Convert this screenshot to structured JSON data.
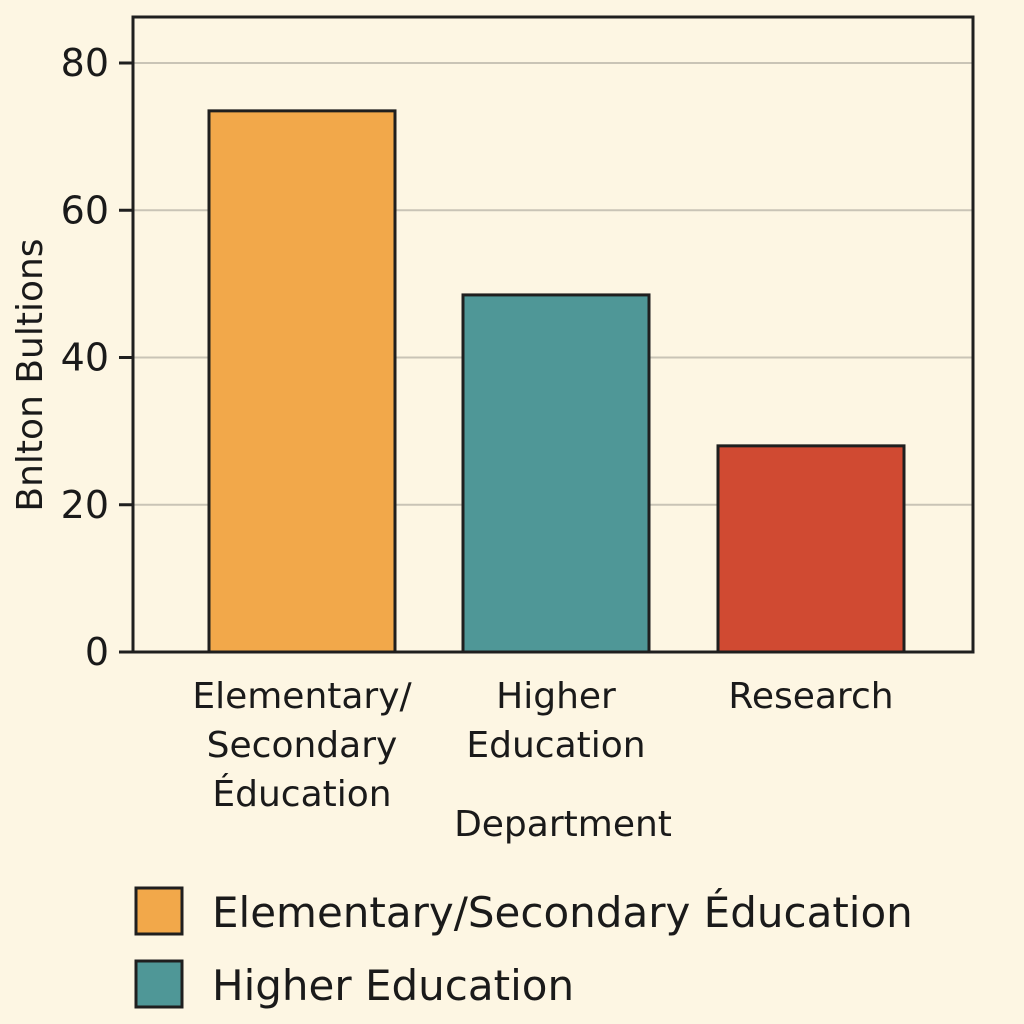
{
  "chart_data": {
    "type": "bar",
    "title": "",
    "xlabel": "Department",
    "ylabel": "Bnlton Bultions",
    "ylim": [
      0,
      80
    ],
    "yticks": [
      0,
      20,
      40,
      60,
      80
    ],
    "grid": true,
    "categories": [
      [
        "Elementary/",
        "Secondary",
        "Éducation"
      ],
      [
        "Higher",
        "Education"
      ],
      [
        "Research"
      ]
    ],
    "values": [
      73.5,
      48.5,
      28
    ],
    "colors": [
      "#f2a84a",
      "#4f9797",
      "#d04a32"
    ],
    "legend": {
      "placement": "bottom",
      "entries": [
        {
          "label": "Elementary/Secondary Éducation",
          "color": "#f2a84a"
        },
        {
          "label": "Higher Education",
          "color": "#4f9797"
        }
      ]
    }
  }
}
